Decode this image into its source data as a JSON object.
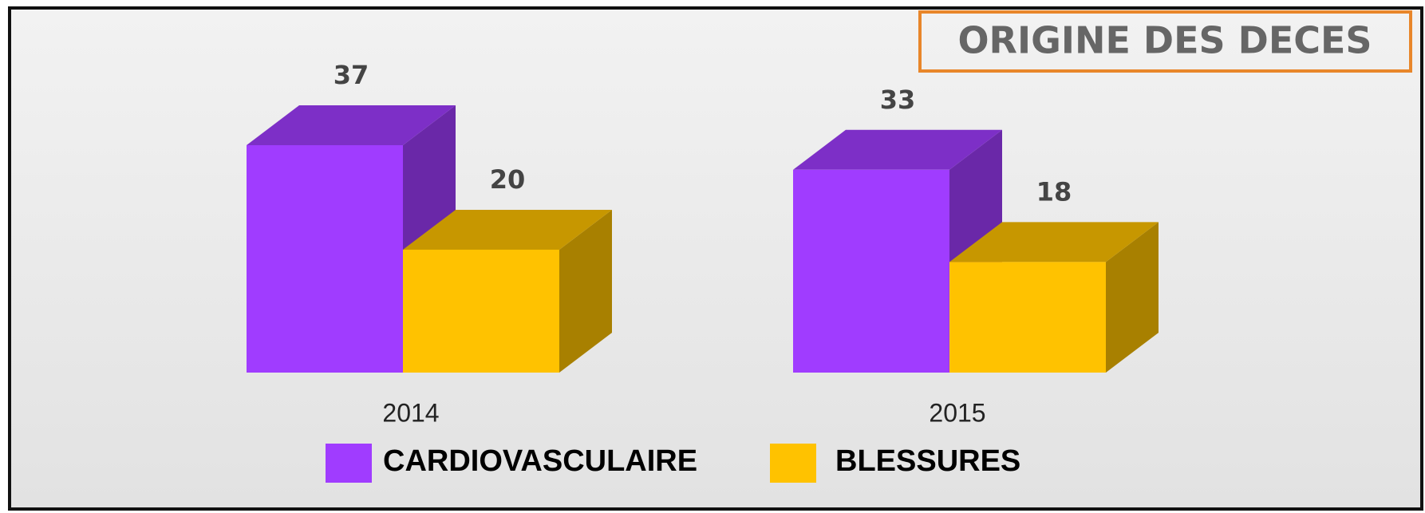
{
  "chart_data": {
    "type": "bar",
    "title": "ORIGINE DES DECES",
    "categories": [
      "2014",
      "2015"
    ],
    "series": [
      {
        "name": "CARDIOVASCULAIRE",
        "color": "#a03cff",
        "values": [
          37,
          33
        ]
      },
      {
        "name": "BLESSURES",
        "color": "#ffc200",
        "values": [
          20,
          18
        ]
      }
    ]
  }
}
